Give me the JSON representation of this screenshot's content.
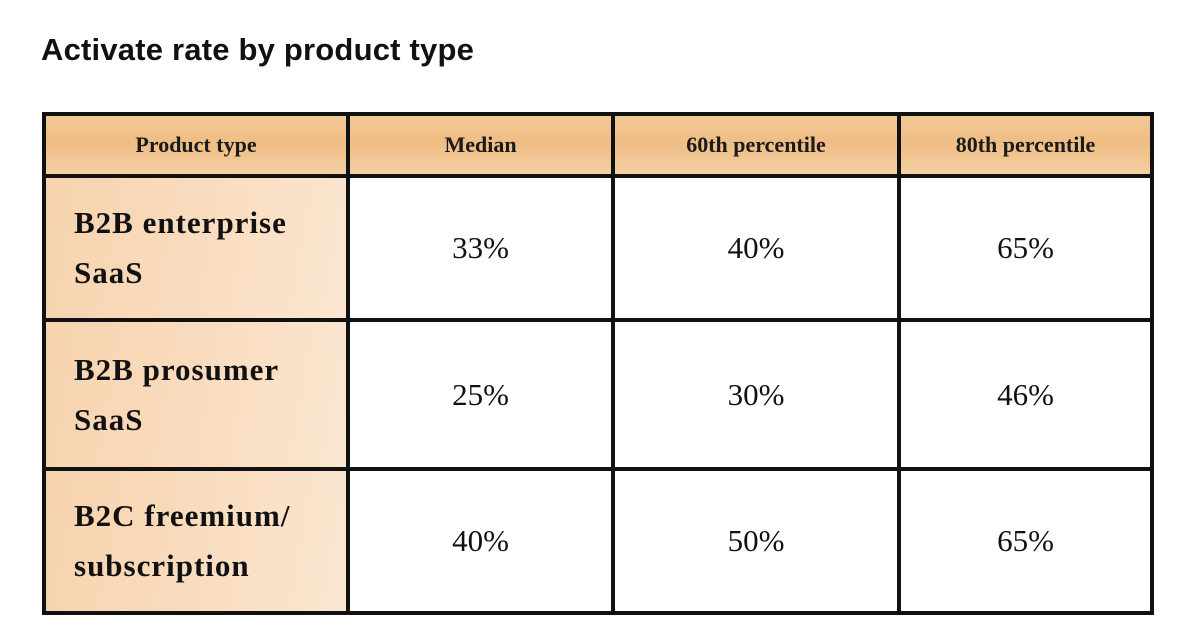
{
  "chart_data": {
    "type": "table",
    "title": "Activate rate by product type",
    "columns": [
      "Product type",
      "Median",
      "60th percentile",
      "80th percentile"
    ],
    "rows": [
      {
        "label_lines": [
          "B2B enterprise",
          "SaaS"
        ],
        "values": [
          "33%",
          "40%",
          "65%"
        ]
      },
      {
        "label_lines": [
          "B2B prosumer",
          "SaaS"
        ],
        "values": [
          "25%",
          "30%",
          "46%"
        ]
      },
      {
        "label_lines": [
          "B2C freemium/",
          "subscription"
        ],
        "values": [
          "40%",
          "50%",
          "65%"
        ]
      }
    ]
  },
  "colors": {
    "header_fill": "#efbd84",
    "row_header_fill": "#f9ddc0",
    "border": "#111111"
  }
}
